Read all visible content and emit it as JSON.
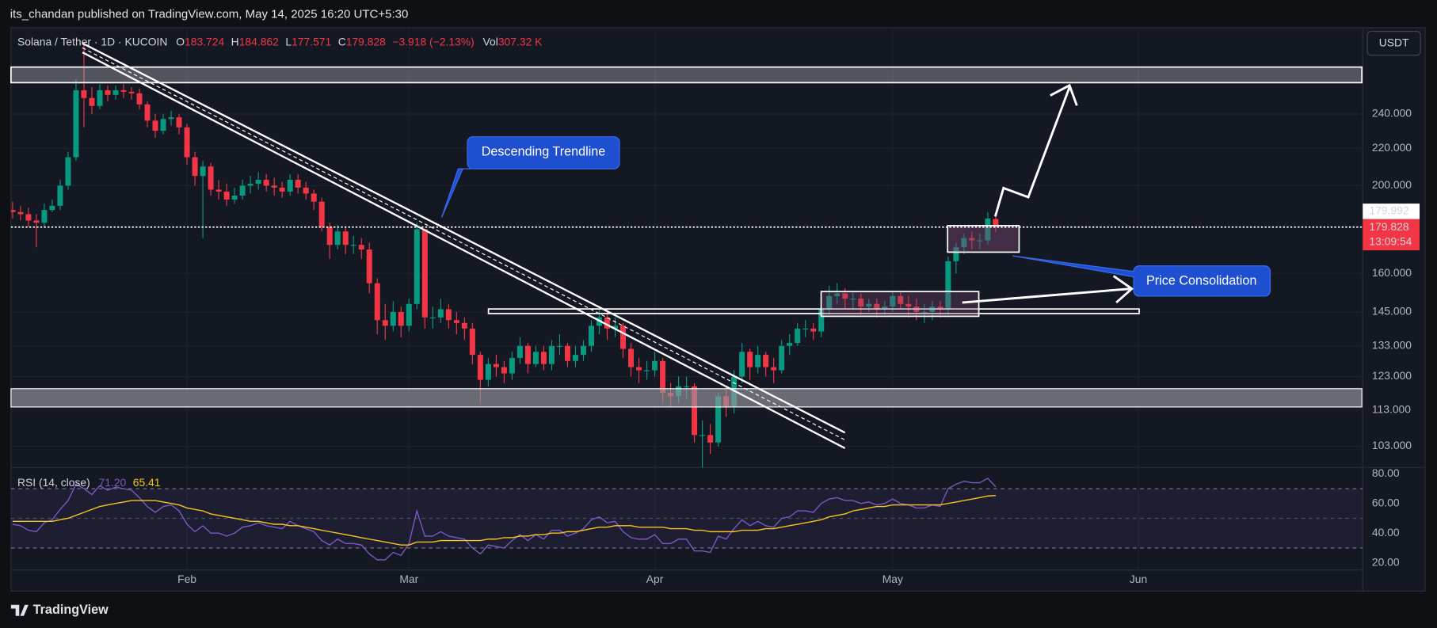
{
  "header": {
    "publisher_line": "its_chandan published on TradingView.com, May 14, 2025 16:20 UTC+5:30"
  },
  "footer": {
    "brand": "TradingView"
  },
  "chart_data": [
    {
      "type": "candlestick",
      "symbol": "Solana / Tether · 1D · KUCOIN",
      "ohlc_legend": [
        {
          "label": "O",
          "value": "183.724"
        },
        {
          "label": "H",
          "value": "184.862"
        },
        {
          "label": "L",
          "value": "177.571"
        },
        {
          "label": "C",
          "value": "179.828"
        }
      ],
      "change": "−3.918 (−2.13%)",
      "volume": {
        "label": "Vol",
        "value": "307.32 K"
      },
      "currency": "USDT",
      "annotations": [
        "Descending Trendline",
        "Price Consolidation"
      ],
      "x": [
        0,
        1,
        2,
        3,
        4,
        5,
        6,
        7,
        8,
        9,
        10,
        11,
        12,
        13,
        14,
        15,
        16,
        17,
        18,
        19,
        20,
        21,
        22,
        23,
        24,
        25,
        26,
        27,
        28,
        29,
        30,
        31,
        32,
        33,
        34,
        35,
        36,
        37,
        38,
        39,
        40,
        41,
        42,
        43,
        44,
        45,
        46,
        47,
        48,
        49,
        50,
        51,
        52,
        53,
        54,
        55,
        56,
        57,
        58,
        59,
        60,
        61,
        62,
        63,
        64,
        65,
        66,
        67,
        68,
        69,
        70,
        71,
        72,
        73,
        74,
        75,
        76,
        77,
        78,
        79,
        80,
        81,
        82,
        83,
        84,
        85,
        86,
        87,
        88,
        89,
        90,
        91,
        92,
        93,
        94,
        95,
        96,
        97,
        98,
        99,
        100,
        101,
        102,
        103,
        104,
        105,
        106,
        107,
        108,
        109,
        110,
        111,
        112,
        113,
        114,
        115,
        116,
        117,
        118,
        119,
        120,
        121,
        122,
        123,
        124
      ],
      "xlim": [
        -0.2,
        170.3
      ],
      "xticks": [
        {
          "value": 22,
          "label": "Feb"
        },
        {
          "value": 50,
          "label": "Mar"
        },
        {
          "value": 81,
          "label": "Apr"
        },
        {
          "value": 111,
          "label": "May"
        },
        {
          "value": 142,
          "label": "Jun"
        }
      ],
      "open": [
        188,
        187,
        186,
        183,
        182,
        188,
        190,
        200,
        215,
        255,
        250,
        245,
        255,
        252,
        255,
        254,
        253,
        246,
        236,
        230,
        237,
        238,
        232,
        215,
        205,
        210,
        198,
        197,
        193,
        195,
        200,
        201,
        203,
        200,
        199,
        197,
        203,
        199,
        196,
        192,
        180,
        172,
        178,
        172,
        172,
        170,
        156,
        142,
        140,
        145,
        140,
        148,
        179,
        143,
        143,
        146,
        142,
        141,
        139,
        130,
        122,
        127,
        126,
        124,
        129,
        133,
        127,
        131,
        127,
        133,
        133,
        128,
        130,
        133,
        140,
        143,
        139,
        140,
        132,
        126,
        125,
        125,
        128,
        118,
        117,
        120,
        120,
        106,
        106,
        104,
        117,
        114,
        123,
        131,
        126,
        130,
        126,
        125,
        133,
        134,
        139,
        139,
        138,
        146,
        151,
        152,
        150,
        150,
        147,
        148,
        146,
        147,
        151,
        148,
        147,
        145,
        145,
        147,
        146,
        165,
        171,
        175,
        174,
        174,
        183.724
      ],
      "high": [
        192,
        190,
        189,
        186,
        191,
        193,
        203,
        218,
        262,
        288,
        257,
        259,
        258,
        258,
        259,
        257,
        256,
        248,
        240,
        240,
        242,
        240,
        234,
        218,
        213,
        212,
        203,
        201,
        199,
        203,
        205,
        207,
        206,
        204,
        202,
        206,
        206,
        202,
        198,
        194,
        182,
        181,
        180,
        176,
        175,
        173,
        158,
        148,
        149,
        147,
        150,
        182,
        179,
        147,
        150,
        148,
        145,
        143,
        141,
        131,
        129,
        130,
        128,
        131,
        136,
        134,
        133,
        133,
        135,
        137,
        134,
        133,
        135,
        142,
        146,
        146,
        143,
        141,
        134,
        129,
        128,
        131,
        129,
        121,
        123,
        123,
        121,
        110,
        109,
        118,
        120,
        125,
        134,
        132,
        133,
        131,
        129,
        135,
        137,
        141,
        142,
        141,
        148,
        155,
        156,
        154,
        153,
        152,
        150,
        150,
        149,
        153,
        153,
        151,
        150,
        148,
        149,
        149,
        167,
        173,
        177,
        178,
        177,
        187,
        184.862
      ],
      "low": [
        184,
        183,
        180,
        171,
        180,
        187,
        188,
        198,
        213,
        232,
        240,
        243,
        248,
        249,
        250,
        249,
        243,
        232,
        226,
        228,
        233,
        228,
        211,
        200,
        175,
        195,
        193,
        190,
        191,
        193,
        196,
        198,
        197,
        195,
        194,
        195,
        196,
        193,
        188,
        178,
        166,
        170,
        168,
        168,
        166,
        152,
        137,
        135,
        138,
        136,
        138,
        146,
        139,
        139,
        141,
        139,
        137,
        135,
        127,
        115,
        120,
        123,
        121,
        122,
        127,
        124,
        126,
        125,
        125,
        130,
        126,
        126,
        128,
        131,
        137,
        135,
        136,
        129,
        123,
        121,
        122,
        123,
        115,
        114,
        115,
        116,
        104,
        96,
        101,
        103,
        111,
        112,
        121,
        122,
        124,
        123,
        121,
        124,
        130,
        133,
        136,
        135,
        136,
        144,
        148,
        146,
        146,
        144,
        145,
        143,
        144,
        145,
        146,
        143,
        142,
        141,
        142,
        143,
        144,
        160,
        168,
        170,
        170,
        172,
        177.571
      ],
      "close": [
        187,
        186,
        183,
        182,
        188,
        190,
        200,
        215,
        255,
        250,
        245,
        255,
        252,
        255,
        254,
        253,
        246,
        236,
        230,
        237,
        238,
        232,
        215,
        205,
        210,
        198,
        197,
        193,
        195,
        200,
        201,
        203,
        200,
        199,
        197,
        203,
        199,
        196,
        192,
        180,
        172,
        178,
        172,
        172,
        170,
        156,
        142,
        140,
        145,
        140,
        148,
        179,
        143,
        143,
        146,
        142,
        141,
        139,
        130,
        122,
        127,
        126,
        124,
        129,
        133,
        127,
        131,
        127,
        133,
        133,
        128,
        130,
        133,
        140,
        143,
        139,
        140,
        132,
        126,
        125,
        125,
        128,
        118,
        117,
        120,
        120,
        106,
        106,
        104,
        117,
        114,
        123,
        131,
        126,
        130,
        126,
        125,
        133,
        134,
        139,
        139,
        138,
        146,
        151,
        152,
        150,
        150,
        147,
        148,
        146,
        147,
        151,
        148,
        147,
        145,
        145,
        147,
        146,
        165,
        171,
        175,
        174,
        174,
        184,
        179.828
      ],
      "up_color": "#089981",
      "down_color": "#f23645",
      "ylim": [
        97.6,
        299
      ],
      "log_scale": true,
      "grid": true,
      "yticks": [
        {
          "value": 240,
          "label": "240.000"
        },
        {
          "value": 220,
          "label": "220.000"
        },
        {
          "value": 200,
          "label": "200.000"
        },
        {
          "value": 160,
          "label": "160.000"
        },
        {
          "value": 145,
          "label": "145.000"
        },
        {
          "value": 133,
          "label": "133.000"
        },
        {
          "value": 123,
          "label": "123.000"
        },
        {
          "value": 113,
          "label": "113.000"
        },
        {
          "value": 103,
          "label": "103.000"
        }
      ],
      "price_line": 179.992,
      "countdown": "13:09:54"
    },
    {
      "type": "line",
      "title": "RSI (14, close)",
      "series": [
        {
          "color": "#7e57c2",
          "last_value_label": "71.20",
          "values": [
            46,
            45,
            42,
            41,
            47,
            49,
            56,
            62,
            73,
            70,
            66,
            72,
            69,
            71,
            70,
            69,
            64,
            58,
            54,
            58,
            59,
            55,
            46,
            41,
            45,
            40,
            40,
            38,
            40,
            44,
            45,
            47,
            45,
            44,
            43,
            48,
            45,
            43,
            41,
            35,
            32,
            36,
            33,
            33,
            32,
            26,
            22,
            22,
            27,
            25,
            33,
            55,
            38,
            38,
            41,
            38,
            37,
            36,
            30,
            26,
            32,
            31,
            30,
            35,
            39,
            35,
            39,
            36,
            42,
            42,
            38,
            40,
            43,
            49,
            51,
            47,
            48,
            41,
            37,
            36,
            36,
            39,
            33,
            33,
            36,
            36,
            28,
            28,
            27,
            38,
            36,
            43,
            49,
            45,
            48,
            45,
            44,
            50,
            51,
            55,
            55,
            54,
            60,
            63,
            64,
            62,
            62,
            60,
            61,
            59,
            60,
            63,
            60,
            59,
            57,
            57,
            59,
            58,
            70,
            73,
            75,
            74,
            74,
            77,
            71.2
          ]
        },
        {
          "color": "#f7c51e",
          "last_value_label": "65.41",
          "values": [
            48,
            48,
            48,
            48,
            48,
            48,
            49,
            50,
            52,
            54,
            56,
            58,
            59,
            60,
            61,
            62,
            62,
            62,
            62,
            61,
            60,
            59,
            57,
            56,
            55,
            53,
            52,
            51,
            50,
            49,
            48,
            48,
            47,
            46,
            46,
            45,
            45,
            44,
            43,
            42,
            41,
            40,
            39,
            38,
            37,
            36,
            35,
            34,
            33,
            32,
            32,
            34,
            34,
            34,
            35,
            35,
            35,
            35,
            35,
            35,
            36,
            36,
            37,
            37,
            38,
            38,
            39,
            39,
            40,
            40,
            41,
            41,
            42,
            43,
            44,
            44,
            45,
            45,
            45,
            44,
            44,
            44,
            44,
            43,
            43,
            43,
            42,
            42,
            41,
            41,
            41,
            41,
            42,
            42,
            42,
            43,
            43,
            44,
            45,
            46,
            47,
            48,
            49,
            51,
            52,
            53,
            55,
            56,
            57,
            58,
            58,
            59,
            59,
            59,
            59,
            59,
            59,
            59,
            60,
            61,
            62,
            63,
            64,
            65,
            65.41
          ]
        }
      ],
      "ylim": [
        15.1,
        84.3
      ],
      "yticks": [
        {
          "value": 80,
          "label": "80.00"
        },
        {
          "value": 60,
          "label": "60.00"
        },
        {
          "value": 40,
          "label": "40.00"
        },
        {
          "value": 20,
          "label": "20.00"
        }
      ],
      "band": [
        30,
        70
      ],
      "midline": 50,
      "band_color": "#7e57c2"
    }
  ]
}
